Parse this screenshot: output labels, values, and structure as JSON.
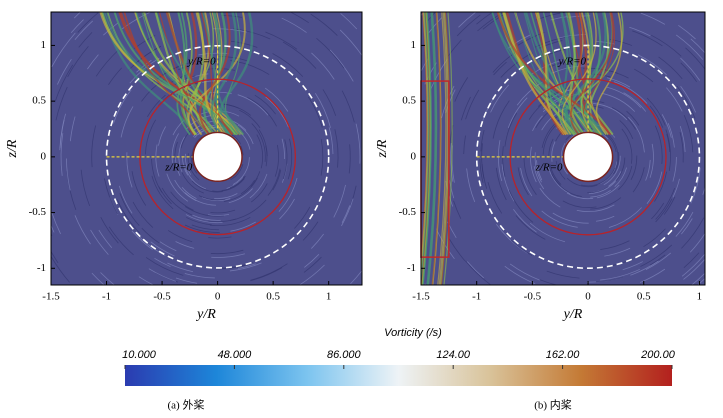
{
  "chart_data": [
    {
      "type": "flow-field",
      "caption": "(a) 外桨",
      "xlabel": "y/R",
      "ylabel": "z/R",
      "annotations": [
        "y/R=0",
        "z/R=0"
      ],
      "xlim": [
        -1.5,
        1.3
      ],
      "ylim": [
        -1.15,
        1.3
      ],
      "xticks": [
        -1.5,
        -1,
        -0.5,
        0,
        0.5,
        1
      ],
      "yticks": [
        -1,
        -0.5,
        0,
        0.5,
        1
      ]
    },
    {
      "type": "flow-field",
      "caption": "(b) 内桨",
      "xlabel": "y/R",
      "ylabel": "z/R",
      "annotations": [
        "y/R=0",
        "z/R=0"
      ],
      "xlim": [
        -1.5,
        1.05
      ],
      "ylim": [
        -1.15,
        1.3
      ],
      "xticks": [
        -1.5,
        -1,
        -0.5,
        0,
        0.5,
        1
      ],
      "yticks": [
        -1,
        -0.5,
        0,
        0.5,
        1
      ]
    }
  ],
  "colorbar": {
    "title": "Vorticity (/s)",
    "lim": [
      10,
      200
    ],
    "ticks": [
      {
        "value": 10,
        "label": "10.000"
      },
      {
        "value": 48,
        "label": "48.000"
      },
      {
        "value": 86,
        "label": "86.000"
      },
      {
        "value": 124,
        "label": "124.00"
      },
      {
        "value": 162,
        "label": "162.00"
      },
      {
        "value": 200,
        "label": "200.00"
      }
    ],
    "colors": [
      "#2b3bb0",
      "#1d86d9",
      "#7cc4ef",
      "#eef3f6",
      "#d9c39a",
      "#c47a35",
      "#b3201e"
    ]
  }
}
